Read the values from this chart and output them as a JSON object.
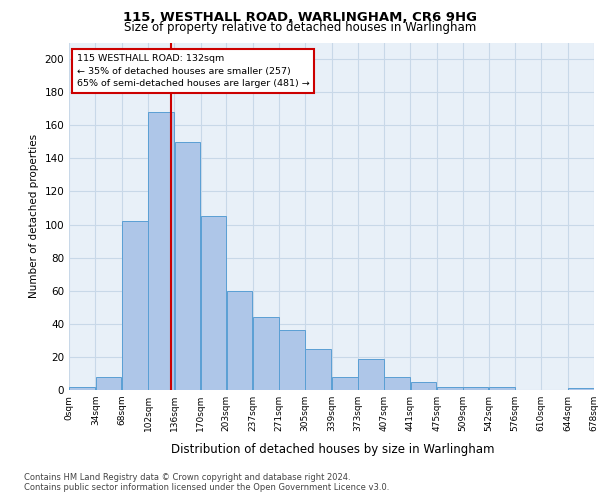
{
  "title_line1": "115, WESTHALL ROAD, WARLINGHAM, CR6 9HG",
  "title_line2": "Size of property relative to detached houses in Warlingham",
  "xlabel": "Distribution of detached houses by size in Warlingham",
  "ylabel": "Number of detached properties",
  "bar_values": [
    2,
    8,
    102,
    168,
    150,
    105,
    60,
    44,
    36,
    25,
    8,
    19,
    8,
    5,
    2,
    2,
    2,
    0,
    0,
    1
  ],
  "bin_edges": [
    0,
    34,
    68,
    102,
    136,
    170,
    203,
    237,
    271,
    305,
    339,
    373,
    407,
    441,
    475,
    509,
    542,
    576,
    610,
    644,
    678
  ],
  "x_tick_labels": [
    "0sqm",
    "34sqm",
    "68sqm",
    "102sqm",
    "136sqm",
    "170sqm",
    "203sqm",
    "237sqm",
    "271sqm",
    "305sqm",
    "339sqm",
    "373sqm",
    "407sqm",
    "441sqm",
    "475sqm",
    "509sqm",
    "542sqm",
    "576sqm",
    "610sqm",
    "644sqm",
    "678sqm"
  ],
  "bar_color": "#aec6e8",
  "bar_edge_color": "#5a9fd4",
  "grid_color": "#c8d8e8",
  "bg_color": "#e8f0f8",
  "vline_x": 132,
  "vline_color": "#cc0000",
  "annotation_text": "115 WESTHALL ROAD: 132sqm\n← 35% of detached houses are smaller (257)\n65% of semi-detached houses are larger (481) →",
  "annotation_box_color": "#ffffff",
  "annotation_box_edge": "#cc0000",
  "footer_line1": "Contains HM Land Registry data © Crown copyright and database right 2024.",
  "footer_line2": "Contains public sector information licensed under the Open Government Licence v3.0.",
  "ylim": [
    0,
    210
  ],
  "yticks": [
    0,
    20,
    40,
    60,
    80,
    100,
    120,
    140,
    160,
    180,
    200
  ]
}
